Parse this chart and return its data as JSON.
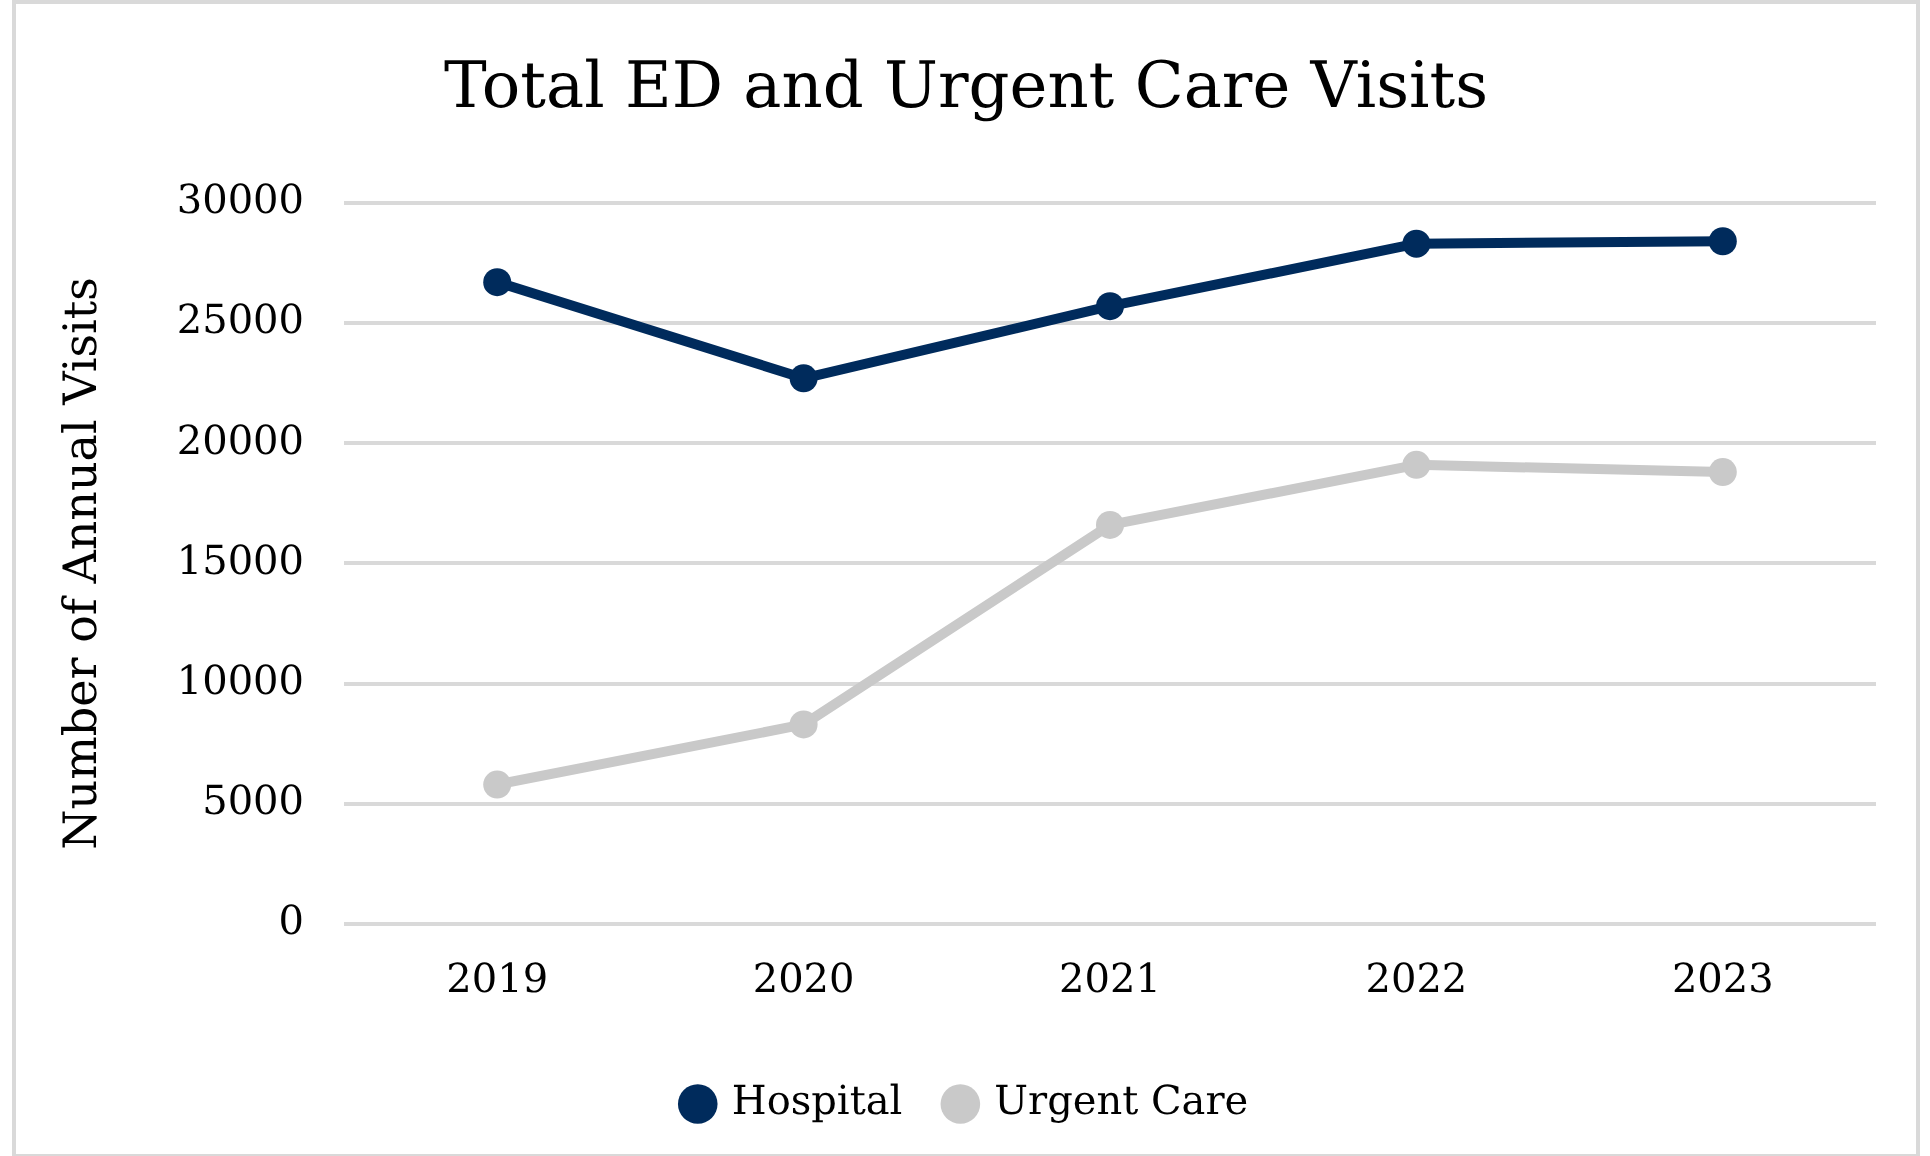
{
  "chart_data": {
    "type": "line",
    "title": "Total ED and Urgent Care Visits",
    "ylabel": "Number of Annual Visits",
    "categories": [
      "2019",
      "2020",
      "2021",
      "2022",
      "2023"
    ],
    "series": [
      {
        "name": "Hospital",
        "color": "#002b5c",
        "values": [
          26700,
          22700,
          25700,
          28300,
          28400
        ]
      },
      {
        "name": "Urgent Care",
        "color": "#c9c9c9",
        "values": [
          5800,
          8300,
          16600,
          19100,
          18800
        ]
      }
    ],
    "ylim": [
      0,
      30000
    ],
    "yticks": [
      0,
      5000,
      10000,
      15000,
      20000,
      25000,
      30000
    ],
    "grid": "y",
    "legend": "bottom",
    "marker": "circle",
    "line_style": "solid"
  }
}
